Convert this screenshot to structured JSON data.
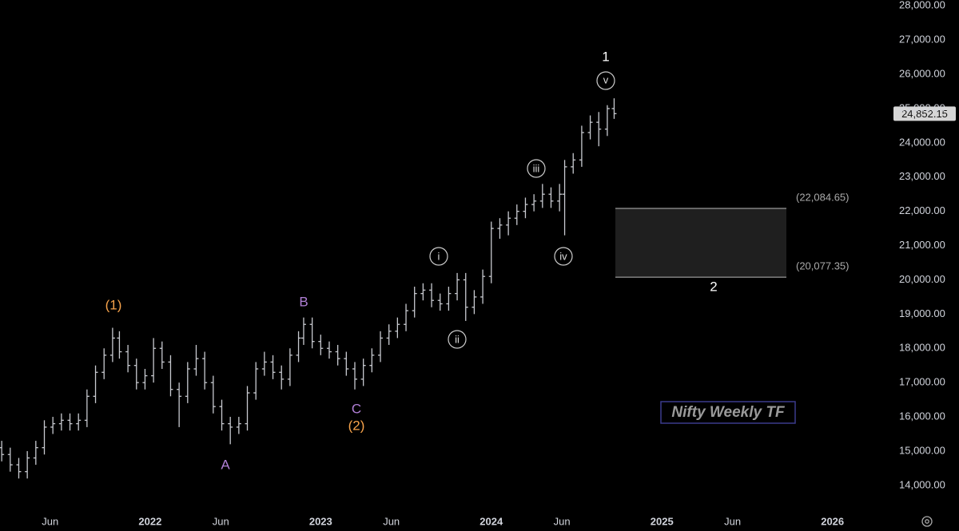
{
  "chart_data": {
    "type": "ohlc",
    "color": "#c8cad0",
    "x": [
      2021.13,
      2021.18,
      2021.23,
      2021.28,
      2021.33,
      2021.38,
      2021.43,
      2021.48,
      2021.53,
      2021.58,
      2021.63,
      2021.68,
      2021.73,
      2021.78,
      2021.82,
      2021.87,
      2021.92,
      2021.97,
      2022.02,
      2022.07,
      2022.12,
      2022.17,
      2022.22,
      2022.27,
      2022.32,
      2022.37,
      2022.42,
      2022.47,
      2022.52,
      2022.57,
      2022.62,
      2022.67,
      2022.72,
      2022.77,
      2022.82,
      2022.87,
      2022.9,
      2022.95,
      2023.0,
      2023.05,
      2023.1,
      2023.15,
      2023.2,
      2023.25,
      2023.3,
      2023.35,
      2023.4,
      2023.45,
      2023.5,
      2023.55,
      2023.6,
      2023.65,
      2023.7,
      2023.75,
      2023.8,
      2023.85,
      2023.9,
      2023.95,
      2024.0,
      2024.05,
      2024.1,
      2024.15,
      2024.2,
      2024.25,
      2024.3,
      2024.35,
      2024.4,
      2024.43,
      2024.48,
      2024.53,
      2024.58,
      2024.63,
      2024.68,
      2024.72
    ],
    "open": [
      15100,
      14900,
      14600,
      14400,
      14800,
      15100,
      15700,
      15800,
      15900,
      15800,
      15900,
      16600,
      17300,
      17800,
      18300,
      17900,
      17500,
      17000,
      17200,
      18000,
      17600,
      16800,
      16600,
      17400,
      17700,
      17000,
      16300,
      15800,
      15700,
      15800,
      16700,
      17400,
      17600,
      17300,
      17100,
      17800,
      18300,
      18700,
      18200,
      18000,
      17900,
      17700,
      17400,
      17100,
      17500,
      17800,
      18300,
      18500,
      18700,
      19100,
      19600,
      19700,
      19400,
      19300,
      19600,
      20000,
      19200,
      19500,
      20100,
      21500,
      21600,
      21800,
      22000,
      22200,
      22300,
      22500,
      22300,
      22500,
      23300,
      23500,
      24300,
      24600,
      24400,
      25000
    ],
    "high": [
      15300,
      15100,
      14800,
      15000,
      15300,
      15900,
      16000,
      16100,
      16100,
      16100,
      16800,
      17500,
      18000,
      18600,
      18500,
      18100,
      17700,
      17400,
      18300,
      18200,
      17800,
      17000,
      17600,
      18100,
      17900,
      17200,
      16500,
      16000,
      16000,
      16900,
      17600,
      17900,
      17800,
      17500,
      18000,
      18500,
      18900,
      18900,
      18400,
      18200,
      18100,
      17900,
      17600,
      17700,
      18000,
      18500,
      18700,
      18900,
      19300,
      19800,
      19900,
      19900,
      19600,
      19800,
      20200,
      20200,
      19700,
      20300,
      21700,
      21800,
      22000,
      22200,
      22400,
      22500,
      22800,
      22700,
      22800,
      23500,
      23700,
      24500,
      24800,
      24900,
      25100,
      25300
    ],
    "low": [
      14700,
      14400,
      14200,
      14200,
      14600,
      14900,
      15500,
      15600,
      15600,
      15600,
      15700,
      16400,
      17100,
      17600,
      17700,
      17300,
      16800,
      16800,
      17000,
      17400,
      16600,
      15700,
      16400,
      17200,
      16800,
      16100,
      15600,
      15200,
      15500,
      15600,
      16500,
      17200,
      17100,
      16800,
      16900,
      17600,
      18100,
      18000,
      17800,
      17700,
      17500,
      17200,
      16800,
      16900,
      17300,
      17600,
      18100,
      18300,
      18500,
      18900,
      19400,
      19200,
      19100,
      19100,
      19400,
      18800,
      19000,
      19300,
      19900,
      21200,
      21300,
      21600,
      21800,
      22000,
      22100,
      22100,
      22000,
      21300,
      23100,
      23300,
      24100,
      23900,
      24200,
      24700
    ],
    "close": [
      14900,
      14600,
      14400,
      14800,
      15100,
      15700,
      15800,
      15900,
      15800,
      15900,
      16600,
      17300,
      17800,
      18300,
      17900,
      17500,
      17000,
      17200,
      18000,
      17600,
      16800,
      16600,
      17400,
      17700,
      17000,
      16300,
      15800,
      15700,
      15800,
      16700,
      17400,
      17600,
      17300,
      17100,
      17800,
      18300,
      18700,
      18200,
      18000,
      17900,
      17700,
      17400,
      17100,
      17500,
      17800,
      18300,
      18500,
      18700,
      19100,
      19600,
      19700,
      19400,
      19300,
      19600,
      20000,
      19200,
      19500,
      20100,
      21500,
      21600,
      21800,
      22000,
      22200,
      22300,
      22500,
      22300,
      22500,
      23300,
      23500,
      24300,
      24600,
      24400,
      25000,
      24852.15
    ],
    "last_price": {
      "value": 24852.15,
      "label": "24,852.15"
    },
    "xlim": [
      2021.12,
      2026.32
    ],
    "xticks": [
      {
        "value": 2021.414,
        "label": "Jun"
      },
      {
        "value": 2022.0,
        "label": "2022"
      },
      {
        "value": 2022.414,
        "label": "Jun"
      },
      {
        "value": 2023.0,
        "label": "2023"
      },
      {
        "value": 2023.414,
        "label": "Jun"
      },
      {
        "value": 2024.0,
        "label": "2024"
      },
      {
        "value": 2024.414,
        "label": "Jun"
      },
      {
        "value": 2025.0,
        "label": "2025"
      },
      {
        "value": 2025.414,
        "label": "Jun"
      },
      {
        "value": 2026.0,
        "label": "2026"
      }
    ],
    "ylim": [
      13250,
      28170
    ],
    "yticks": [
      {
        "value": 14000,
        "label": "14,000.00"
      },
      {
        "value": 15000,
        "label": "15,000.00"
      },
      {
        "value": 16000,
        "label": "16,000.00"
      },
      {
        "value": 17000,
        "label": "17,000.00"
      },
      {
        "value": 18000,
        "label": "18,000.00"
      },
      {
        "value": 19000,
        "label": "19,000.00"
      },
      {
        "value": 20000,
        "label": "20,000.00"
      },
      {
        "value": 21000,
        "label": "21,000.00"
      },
      {
        "value": 22000,
        "label": "22,000.00"
      },
      {
        "value": 23000,
        "label": "23,000.00"
      },
      {
        "value": 24000,
        "label": "24,000.00"
      },
      {
        "value": 25000,
        "label": "25,000.00"
      },
      {
        "value": 26000,
        "label": "26,000.00"
      },
      {
        "value": 27000,
        "label": "27,000.00"
      },
      {
        "value": 28000,
        "label": "28,000.00"
      }
    ],
    "zone": {
      "top": {
        "value": 22084.65,
        "label": "(22,084.65)"
      },
      "bottom": {
        "value": 20077.35,
        "label": "(20,077.35)"
      },
      "label": "2"
    },
    "annotations": [
      "(1)",
      "A",
      "B",
      "C",
      "(2)",
      "i",
      "ii",
      "iii",
      "iv",
      "v",
      "1"
    ],
    "caption": "Nifty Weekly TF"
  }
}
